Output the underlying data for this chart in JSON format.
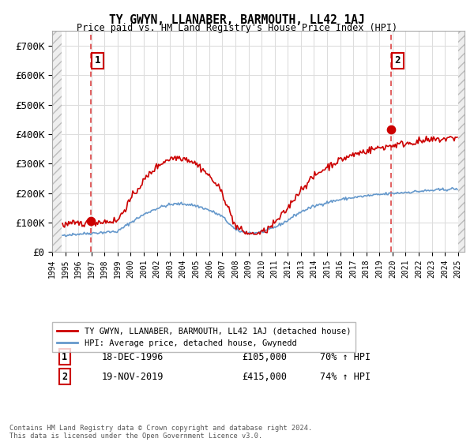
{
  "title": "TY GWYN, LLANABER, BARMOUTH, LL42 1AJ",
  "subtitle": "Price paid vs. HM Land Registry's House Price Index (HPI)",
  "xlim_start": 1994.0,
  "xlim_end": 2025.5,
  "ylim": [
    0,
    750000
  ],
  "yticks": [
    0,
    100000,
    200000,
    300000,
    400000,
    500000,
    600000,
    700000
  ],
  "ytick_labels": [
    "£0",
    "£100K",
    "£200K",
    "£300K",
    "£400K",
    "£500K",
    "£600K",
    "£700K"
  ],
  "sale1_x": 1996.96,
  "sale1_y": 105000,
  "sale1_label": "1",
  "sale1_date": "18-DEC-1996",
  "sale1_price": "£105,000",
  "sale1_hpi": "70% ↑ HPI",
  "sale2_x": 2019.88,
  "sale2_y": 415000,
  "sale2_label": "2",
  "sale2_date": "19-NOV-2019",
  "sale2_price": "£415,000",
  "sale2_hpi": "74% ↑ HPI",
  "line_color_red": "#cc0000",
  "line_color_blue": "#6699cc",
  "grid_color": "#dddddd",
  "vline_color": "#dd4444",
  "background_color": "#ffffff",
  "legend_label_red": "TY GWYN, LLANABER, BARMOUTH, LL42 1AJ (detached house)",
  "legend_label_blue": "HPI: Average price, detached house, Gwynedd",
  "footnote": "Contains HM Land Registry data © Crown copyright and database right 2024.\nThis data is licensed under the Open Government Licence v3.0.",
  "xtick_years": [
    1994,
    1995,
    1996,
    1997,
    1998,
    1999,
    2000,
    2001,
    2002,
    2003,
    2004,
    2005,
    2006,
    2007,
    2008,
    2009,
    2010,
    2011,
    2012,
    2013,
    2014,
    2015,
    2016,
    2017,
    2018,
    2019,
    2020,
    2021,
    2022,
    2023,
    2024,
    2025
  ],
  "hatch_x_left_end": 1994.75,
  "hatch_x_right_start": 2025.0
}
